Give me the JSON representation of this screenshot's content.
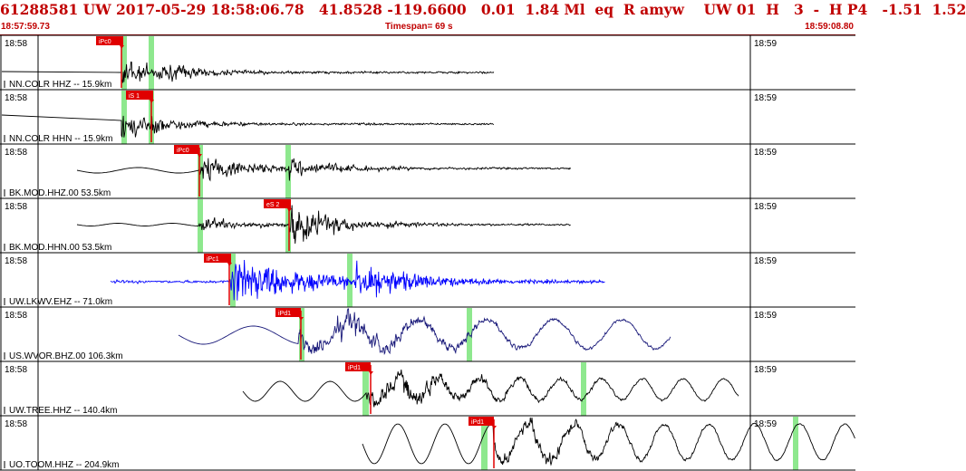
{
  "header": {
    "title": "61288581 UW 2017-05-29 18:58:06.78   41.8528 -119.6600   0.01  1.84 Ml  eq  R amyw    UW 01  H   3  -  H P4   -1.51  1.52",
    "start_time": "18:57:59.73",
    "timespan": "Timespan=  69 s",
    "end_time": "18:59:08.80"
  },
  "tick_labels": {
    "left": "18:58",
    "right": "18:59"
  },
  "colors": {
    "header": "#c00000",
    "pick": "#e00000",
    "window": "#8ee88e",
    "black": "#000000",
    "blue": "#0000ff",
    "navy": "#1a1a7a"
  },
  "channels": [
    {
      "label": "NN.COLR HHZ -- 15.9km",
      "pick_label": "iPc0",
      "trace_color": "#000000"
    },
    {
      "label": "NN.COLR HHN -- 15.9km",
      "pick_label": "iS 1",
      "trace_color": "#000000"
    },
    {
      "label": "BK.MOD.HHZ.00 53.5km",
      "pick_label": "iPc0",
      "trace_color": "#000000"
    },
    {
      "label": "BK.MOD.HHN.00 53.5km",
      "pick_label": "eS 2",
      "trace_color": "#000000"
    },
    {
      "label": "UW.LKWV.EHZ -- 71.0km",
      "pick_label": "iPc1",
      "trace_color": "#0000ff"
    },
    {
      "label": "US.WVOR.BHZ.00 106.3km",
      "pick_label": "iPd1",
      "trace_color": "#1a1a7a"
    },
    {
      "label": "UW.TREE.HHZ -- 140.4km",
      "pick_label": "iPd1",
      "trace_color": "#000000"
    },
    {
      "label": "UO.TOOM.HHZ -- 204.9km",
      "pick_label": "iPd1",
      "trace_color": "#000000"
    }
  ]
}
